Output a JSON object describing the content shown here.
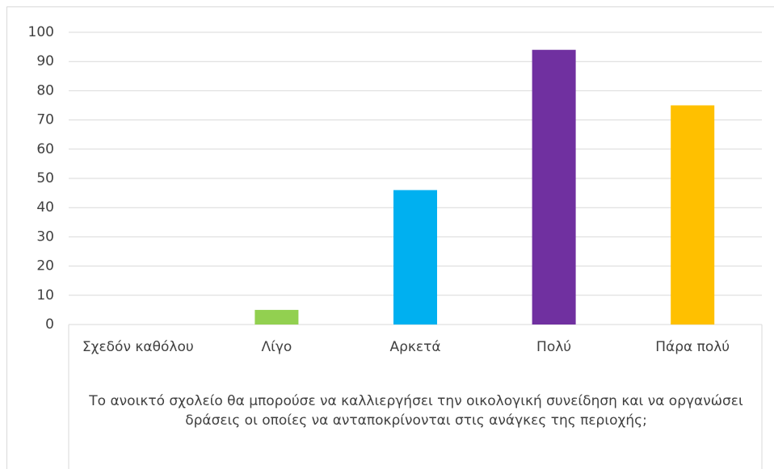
{
  "chart_data": {
    "type": "bar",
    "x_label": "Το ανοικτό σχολείο θα μπορούσε να  καλλιεργήσει την οικολογική συνείδηση και να οργανώσει δράσεις οι οποίες  να ανταποκρίνονται στις ανάγκες της περιοχής;",
    "categories": [
      "Σχεδόν καθόλου",
      "Λίγο",
      "Αρκετά",
      "Πολύ",
      "Πάρα πολύ"
    ],
    "values": [
      0,
      5,
      46,
      94,
      75
    ],
    "colors": [
      null,
      "#92d050",
      "#00b0f0",
      "#7030a0",
      "#ffc000"
    ],
    "ylim": [
      0,
      100
    ],
    "yticks": [
      0,
      10,
      20,
      30,
      40,
      50,
      60,
      70,
      80,
      90,
      100
    ],
    "grid": true
  }
}
